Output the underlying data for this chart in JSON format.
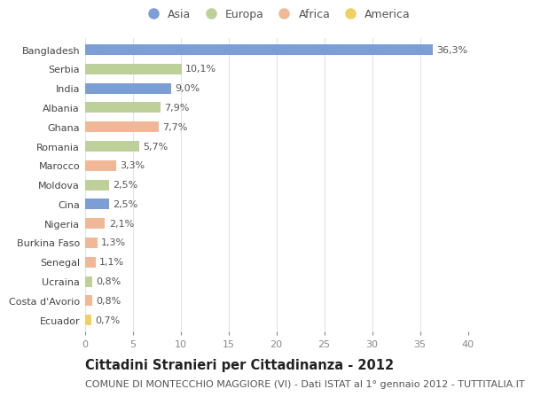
{
  "countries": [
    "Bangladesh",
    "Serbia",
    "India",
    "Albania",
    "Ghana",
    "Romania",
    "Marocco",
    "Moldova",
    "Cina",
    "Nigeria",
    "Burkina Faso",
    "Senegal",
    "Ucraina",
    "Costa d'Avorio",
    "Ecuador"
  ],
  "values": [
    36.3,
    10.1,
    9.0,
    7.9,
    7.7,
    5.7,
    3.3,
    2.5,
    2.5,
    2.1,
    1.3,
    1.1,
    0.8,
    0.8,
    0.7
  ],
  "labels": [
    "36,3%",
    "10,1%",
    "9,0%",
    "7,9%",
    "7,7%",
    "5,7%",
    "3,3%",
    "2,5%",
    "2,5%",
    "2,1%",
    "1,3%",
    "1,1%",
    "0,8%",
    "0,8%",
    "0,7%"
  ],
  "colors": [
    "#7b9fd4",
    "#bdd09a",
    "#7b9fd4",
    "#bdd09a",
    "#f0b896",
    "#bdd09a",
    "#f0b896",
    "#bdd09a",
    "#7b9fd4",
    "#f0b896",
    "#f0b896",
    "#f0b896",
    "#bdd09a",
    "#f0b896",
    "#f0d060"
  ],
  "legend_labels": [
    "Asia",
    "Europa",
    "Africa",
    "America"
  ],
  "legend_colors": [
    "#7b9fd4",
    "#bdd09a",
    "#f0b896",
    "#f0d060"
  ],
  "title": "Cittadini Stranieri per Cittadinanza - 2012",
  "subtitle": "COMUNE DI MONTECCHIO MAGGIORE (VI) - Dati ISTAT al 1° gennaio 2012 - TUTTITALIA.IT",
  "xlim": [
    0,
    40
  ],
  "xticks": [
    0,
    5,
    10,
    15,
    20,
    25,
    30,
    35,
    40
  ],
  "bg_color": "#ffffff",
  "grid_color": "#dce4ee",
  "bar_height": 0.55,
  "title_fontsize": 10.5,
  "subtitle_fontsize": 8,
  "label_fontsize": 8,
  "tick_fontsize": 8,
  "legend_fontsize": 9
}
